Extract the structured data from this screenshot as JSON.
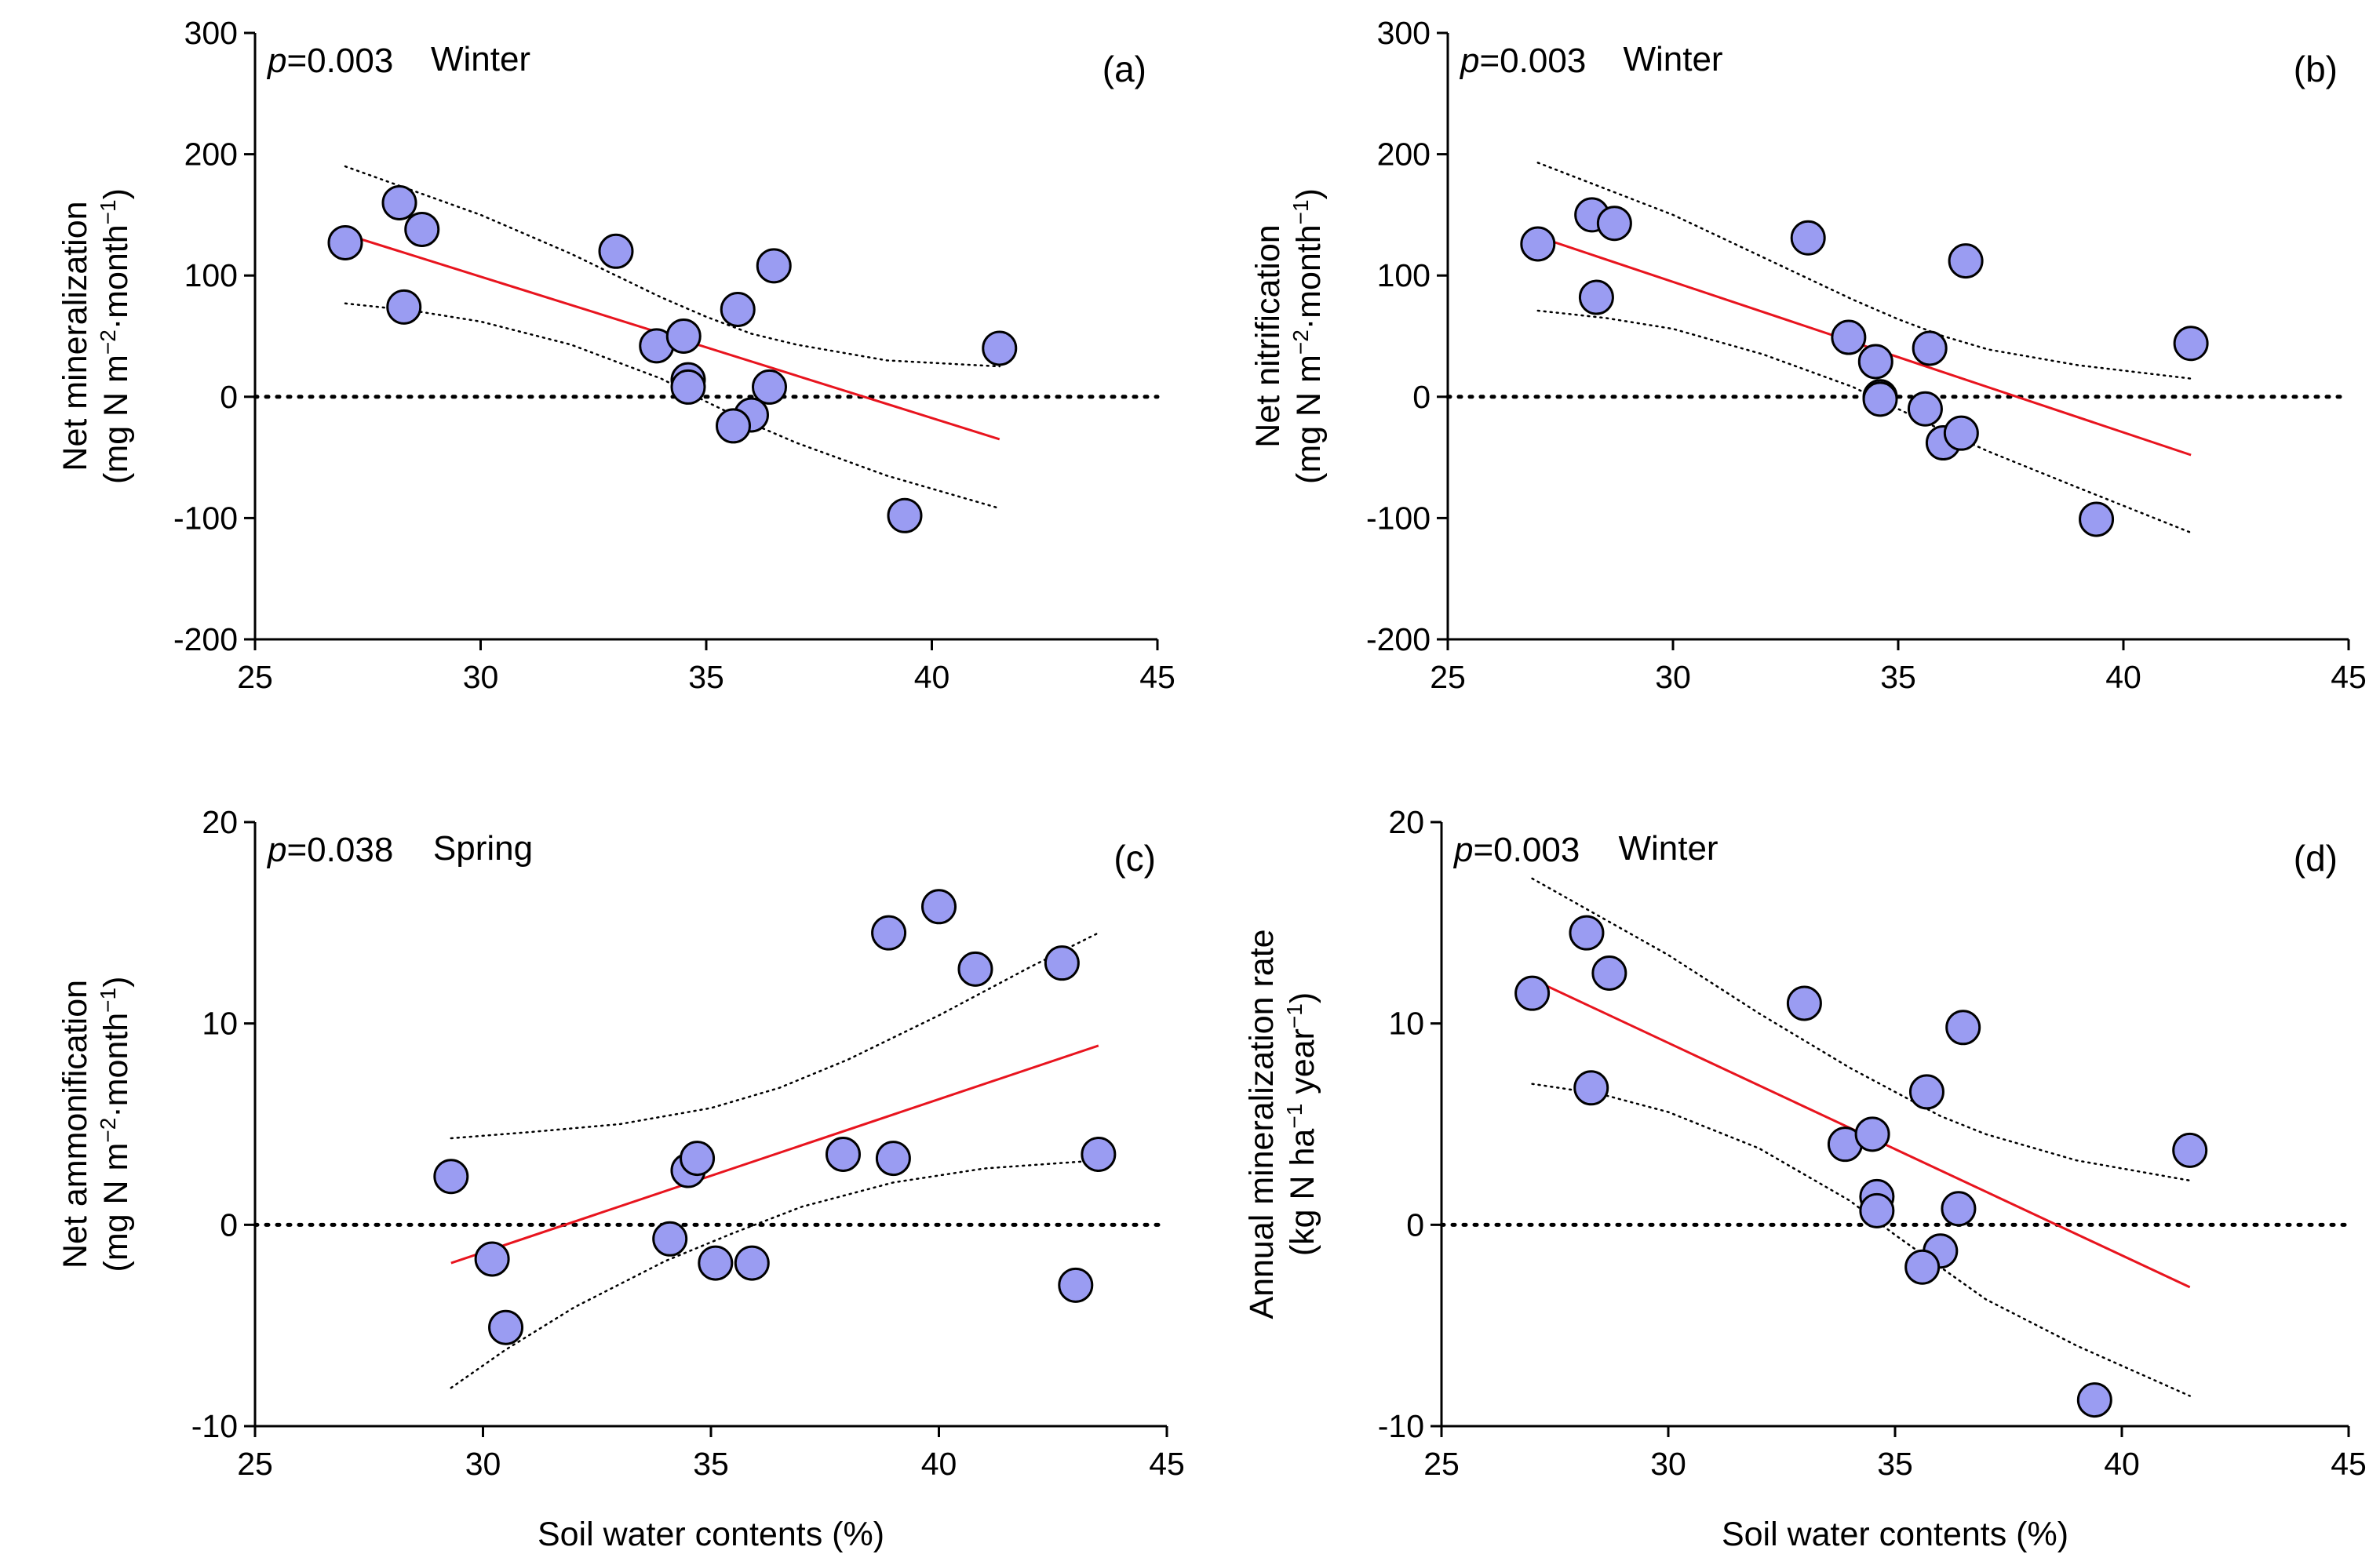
{
  "figure": {
    "shared_xlabel": "Soil water contents (%)"
  },
  "chart_data": [
    {
      "type": "scatter",
      "panel": "(a)",
      "season": "Winter",
      "p_prefix": "p",
      "p_value": "=0.003",
      "xlabel": "",
      "ylabel_line1": "Net mineralization",
      "ylabel_line2_pre": "(mg N m",
      "ylabel_sup1": "−2",
      "ylabel_mid": "·month",
      "ylabel_sup2": "−1",
      "ylabel_post": ")",
      "xlim": [
        25,
        45
      ],
      "ylim": [
        -200,
        300
      ],
      "xticks": [
        25,
        30,
        35,
        40,
        45
      ],
      "yticks": [
        -200,
        -100,
        0,
        100,
        200,
        300
      ],
      "x": [
        27.0,
        28.2,
        28.7,
        28.3,
        33.0,
        33.9,
        34.5,
        34.6,
        34.6,
        35.7,
        36.5,
        36.4,
        36.0,
        35.6,
        39.4,
        41.5
      ],
      "y": [
        127,
        160,
        138,
        74,
        120,
        42,
        50,
        14,
        8,
        72,
        108,
        8,
        -15,
        -24,
        -98,
        40
      ],
      "fit": {
        "x": [
          27.0,
          41.5
        ],
        "y": [
          134,
          -35
        ]
      },
      "ci_upper": {
        "x": [
          27.0,
          30.0,
          32.0,
          34.0,
          35.0,
          36.0,
          37.0,
          39.0,
          41.5
        ],
        "y": [
          190,
          150,
          118,
          82,
          66,
          52,
          43,
          30,
          25
        ]
      },
      "ci_lower": {
        "x": [
          27.0,
          28.5,
          30.0,
          32.0,
          34.0,
          35.0,
          36.0,
          37.0,
          39.0,
          41.5
        ],
        "y": [
          77,
          71,
          62,
          43,
          15,
          -4,
          -22,
          -38,
          -65,
          -92
        ]
      },
      "zero_line": 0
    },
    {
      "type": "scatter",
      "panel": "(b)",
      "season": "Winter",
      "p_prefix": "p",
      "p_value": "=0.003",
      "xlabel": "",
      "ylabel_line1": "Net nitrification",
      "ylabel_line2_pre": "(mg N m",
      "ylabel_sup1": "−2",
      "ylabel_mid": "·month",
      "ylabel_sup2": "−1",
      "ylabel_post": ")",
      "xlim": [
        25,
        45
      ],
      "ylim": [
        -200,
        300
      ],
      "xticks": [
        25,
        30,
        35,
        40,
        45
      ],
      "yticks": [
        -200,
        -100,
        0,
        100,
        200,
        300
      ],
      "x": [
        27.0,
        28.2,
        28.7,
        28.3,
        33.0,
        33.9,
        34.5,
        34.6,
        34.6,
        35.7,
        36.5,
        35.6,
        36.0,
        36.4,
        39.4,
        41.5
      ],
      "y": [
        126,
        150,
        143,
        82,
        131,
        49,
        29,
        0,
        -2,
        40,
        112,
        -10,
        -38,
        -30,
        -101,
        44
      ],
      "fit": {
        "x": [
          27.0,
          41.5
        ],
        "y": [
          132,
          -48
        ]
      },
      "ci_upper": {
        "x": [
          27.0,
          30.0,
          32.0,
          34.0,
          35.0,
          36.0,
          37.0,
          39.0,
          41.5
        ],
        "y": [
          193,
          150,
          115,
          80,
          64,
          50,
          39,
          26,
          15
        ]
      },
      "ci_lower": {
        "x": [
          27.0,
          28.5,
          30.0,
          32.0,
          34.0,
          35.0,
          36.0,
          37.0,
          39.0,
          41.5
        ],
        "y": [
          71,
          65,
          56,
          35,
          8,
          -10,
          -28,
          -45,
          -75,
          -112
        ]
      },
      "zero_line": 0
    },
    {
      "type": "scatter",
      "panel": "(c)",
      "season": "Spring",
      "p_prefix": "p",
      "p_value": "=0.038",
      "xlabel": "Soil water contents (%)",
      "ylabel_line1": "Net ammonification",
      "ylabel_line2_pre": "(mg N m",
      "ylabel_sup1": "−2",
      "ylabel_mid": "·month",
      "ylabel_sup2": "−1",
      "ylabel_post": ")",
      "xlim": [
        25,
        45
      ],
      "ylim": [
        -10,
        20
      ],
      "xticks": [
        25,
        30,
        35,
        40,
        45
      ],
      "yticks": [
        -10,
        0,
        10,
        20
      ],
      "x": [
        29.3,
        30.2,
        30.5,
        34.1,
        34.5,
        34.7,
        35.1,
        35.9,
        37.9,
        38.9,
        39.0,
        40.0,
        40.8,
        42.7,
        43.0,
        43.5
      ],
      "y": [
        2.4,
        -1.7,
        -5.1,
        -0.7,
        2.7,
        3.3,
        -1.9,
        -1.9,
        3.5,
        14.5,
        3.3,
        15.8,
        12.7,
        13.0,
        -3.0,
        3.5
      ],
      "fit": {
        "x": [
          29.3,
          43.5
        ],
        "y": [
          -1.9,
          8.9
        ]
      },
      "ci_upper": {
        "x": [
          29.3,
          31.0,
          33.0,
          35.0,
          36.5,
          38.0,
          40.0,
          42.0,
          43.5
        ],
        "y": [
          4.3,
          4.6,
          5.0,
          5.8,
          6.8,
          8.2,
          10.4,
          12.8,
          14.5
        ]
      },
      "ci_lower": {
        "x": [
          29.3,
          30.5,
          32.0,
          34.0,
          35.5,
          37.0,
          39.0,
          41.0,
          43.5
        ],
        "y": [
          -8.1,
          -6.2,
          -4.1,
          -1.8,
          -0.4,
          0.9,
          2.1,
          2.8,
          3.2
        ]
      },
      "zero_line": 0
    },
    {
      "type": "scatter",
      "panel": "(d)",
      "season": "Winter",
      "p_prefix": "p",
      "p_value": "=0.003",
      "xlabel": "Soil water contents (%)",
      "ylabel_line1": "Annual mineralization rate",
      "ylabel_line2_pre": "(kg N ha",
      "ylabel_sup1": "−1",
      "ylabel_mid": " year",
      "ylabel_sup2": "−1",
      "ylabel_post": ")",
      "xlim": [
        25,
        45
      ],
      "ylim": [
        -10,
        20
      ],
      "xticks": [
        25,
        30,
        35,
        40,
        45
      ],
      "yticks": [
        -10,
        0,
        10,
        20
      ],
      "x": [
        27.0,
        28.2,
        28.7,
        28.3,
        33.0,
        33.9,
        34.5,
        34.6,
        34.6,
        35.7,
        36.5,
        36.4,
        36.0,
        35.6,
        39.4,
        41.5
      ],
      "y": [
        11.5,
        14.5,
        12.5,
        6.8,
        11.0,
        4.0,
        4.5,
        1.4,
        0.7,
        6.6,
        9.8,
        0.8,
        -1.3,
        -2.1,
        -8.7,
        3.7
      ],
      "fit": {
        "x": [
          27.0,
          41.5
        ],
        "y": [
          12.2,
          -3.1
        ]
      },
      "ci_upper": {
        "x": [
          27.0,
          30.0,
          32.0,
          34.0,
          35.0,
          36.0,
          37.0,
          39.0,
          41.5
        ],
        "y": [
          17.2,
          13.4,
          10.5,
          7.8,
          6.6,
          5.4,
          4.5,
          3.2,
          2.2
        ]
      },
      "ci_lower": {
        "x": [
          27.0,
          28.5,
          30.0,
          32.0,
          34.0,
          35.0,
          36.0,
          37.0,
          39.0,
          41.5
        ],
        "y": [
          7.0,
          6.5,
          5.6,
          3.8,
          1.2,
          -0.5,
          -2.1,
          -3.7,
          -6.0,
          -8.5
        ]
      },
      "zero_line": 0
    }
  ],
  "colors": {
    "point_fill": "#9a9cf2",
    "point_stroke": "#000000",
    "fit_line": "#e8141e",
    "ci_line": "#000000",
    "axis": "#000000"
  }
}
